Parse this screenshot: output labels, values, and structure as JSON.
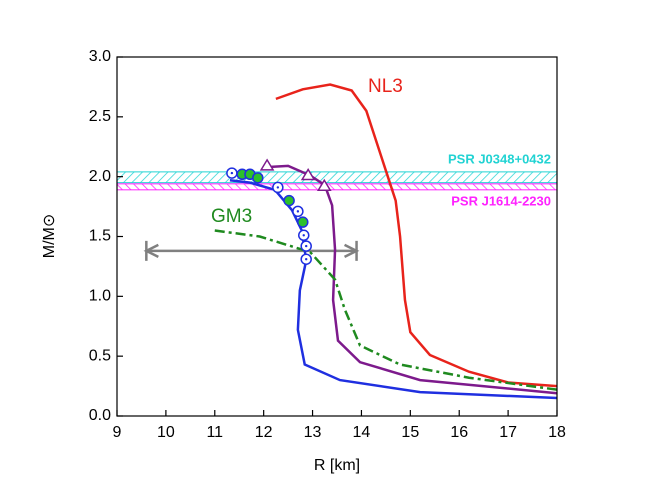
{
  "chart_data": {
    "type": "line",
    "x_label": "R [km]",
    "y_label": "M/M⊙",
    "xlim": [
      9,
      18
    ],
    "ylim": [
      0,
      3
    ],
    "xticks": [
      9,
      10,
      11,
      12,
      13,
      14,
      15,
      16,
      17,
      18
    ],
    "yticks": [
      {
        "value": 0,
        "label": "0.0"
      },
      0.5,
      {
        "value": 1,
        "label": "1.0"
      },
      1.5,
      {
        "value": 2,
        "label": "2.0"
      },
      2.5,
      {
        "value": 3,
        "label": "3.0"
      }
    ],
    "bands": [
      {
        "label": "PSR J0348+0432",
        "ymin": 1.95,
        "ymax": 2.04,
        "color": "#22d3d3"
      },
      {
        "label": "PSR J1614-2230",
        "ymin": 1.89,
        "ymax": 1.94,
        "color": "#ff22ff"
      }
    ],
    "series": [
      {
        "name": "NL3",
        "color": "#e8231b",
        "dash": "solid",
        "x": [
          12.25,
          12.8,
          13.36,
          13.8,
          14.1,
          14.3,
          14.5,
          14.7,
          14.79,
          14.89,
          15.0,
          15.4,
          16.2,
          17.0,
          18.0
        ],
        "values": [
          2.65,
          2.73,
          2.77,
          2.72,
          2.55,
          2.3,
          2.05,
          1.8,
          1.5,
          0.97,
          0.7,
          0.51,
          0.37,
          0.28,
          0.25
        ]
      },
      {
        "color": "#7d1a8c",
        "dash": "solid",
        "x": [
          12.05,
          12.5,
          12.95,
          13.25,
          13.4,
          13.46,
          13.42,
          13.52,
          13.97,
          15.2,
          18.0
        ],
        "values": [
          2.08,
          2.09,
          2.01,
          1.93,
          1.76,
          1.39,
          0.97,
          0.63,
          0.45,
          0.3,
          0.19
        ]
      },
      {
        "color": "#1f2fe0",
        "dash": "solid",
        "x": [
          11.31,
          11.72,
          12.23,
          12.58,
          12.78,
          12.87,
          12.74,
          12.7,
          12.84,
          13.56,
          15.2,
          18.0
        ],
        "values": [
          1.97,
          1.95,
          1.89,
          1.72,
          1.55,
          1.3,
          1.05,
          0.72,
          0.43,
          0.3,
          0.2,
          0.15
        ]
      },
      {
        "name": "GM3",
        "color": "#1f8a1f",
        "dash": "dashdot",
        "x": [
          11.0,
          11.92,
          12.95,
          13.46,
          13.66,
          13.97,
          14.79,
          16.2,
          18.0
        ],
        "values": [
          1.55,
          1.5,
          1.37,
          1.14,
          0.89,
          0.59,
          0.43,
          0.32,
          0.22
        ]
      }
    ],
    "markers": [
      {
        "shape": "dot-circle",
        "color": "#1f2fe0",
        "x": [
          11.35,
          12.29,
          12.7,
          12.82,
          12.87,
          12.87
        ],
        "values": [
          2.03,
          1.91,
          1.71,
          1.51,
          1.42,
          1.31
        ]
      },
      {
        "shape": "filled-circle",
        "color": "#2cc02c",
        "x": [
          11.56,
          11.72,
          11.88,
          12.52,
          12.8
        ],
        "values": [
          2.02,
          2.02,
          1.99,
          1.8,
          1.62
        ]
      },
      {
        "shape": "triangle",
        "color": "#7d1a8c",
        "x": [
          12.07,
          12.91,
          13.24
        ],
        "values": [
          2.09,
          2.01,
          1.92
        ]
      }
    ],
    "radius_range": {
      "x": [
        9.6,
        13.9
      ],
      "value": 1.38,
      "color": "#808080"
    }
  }
}
